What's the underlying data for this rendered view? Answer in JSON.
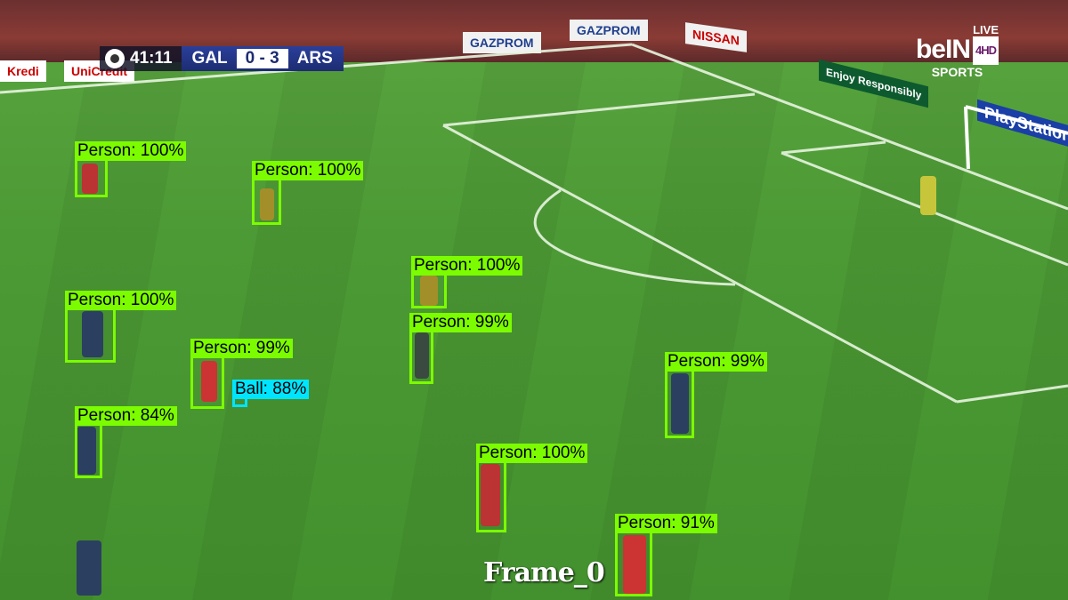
{
  "scoreboard": {
    "clock": "41:11",
    "home": "GAL",
    "score": "0 - 3",
    "away": "ARS"
  },
  "broadcaster": {
    "live": "LIVE",
    "logo": "beIN",
    "hd": "4HD",
    "sports": "SPORTS"
  },
  "ads": [
    "Kredi",
    "UniCredit",
    "GAZPROM",
    "GAZPROM",
    "NISSAN",
    "Enjoy Responsibly",
    "PlayStation"
  ],
  "frame_label": "Frame_0",
  "detections": [
    {
      "label": "Person: 100%",
      "class": "person",
      "confidence": 100
    },
    {
      "label": "Person: 100%",
      "class": "person",
      "confidence": 100
    },
    {
      "label": "Person: 100%",
      "class": "person",
      "confidence": 100
    },
    {
      "label": "Person: 99%",
      "class": "person",
      "confidence": 99
    },
    {
      "label": "Person: 100%",
      "class": "person",
      "confidence": 100
    },
    {
      "label": "Person: 99%",
      "class": "person",
      "confidence": 99
    },
    {
      "label": "Ball: 88%",
      "class": "ball",
      "confidence": 88
    },
    {
      "label": "Person: 84%",
      "class": "person",
      "confidence": 84
    },
    {
      "label": "Person: 99%",
      "class": "person",
      "confidence": 99
    },
    {
      "label": "Person: 100%",
      "class": "person",
      "confidence": 100
    },
    {
      "label": "Person: 91%",
      "class": "person",
      "confidence": 91
    }
  ],
  "colors": {
    "person_box": "#7cfc00",
    "ball_box": "#00e5ff"
  }
}
